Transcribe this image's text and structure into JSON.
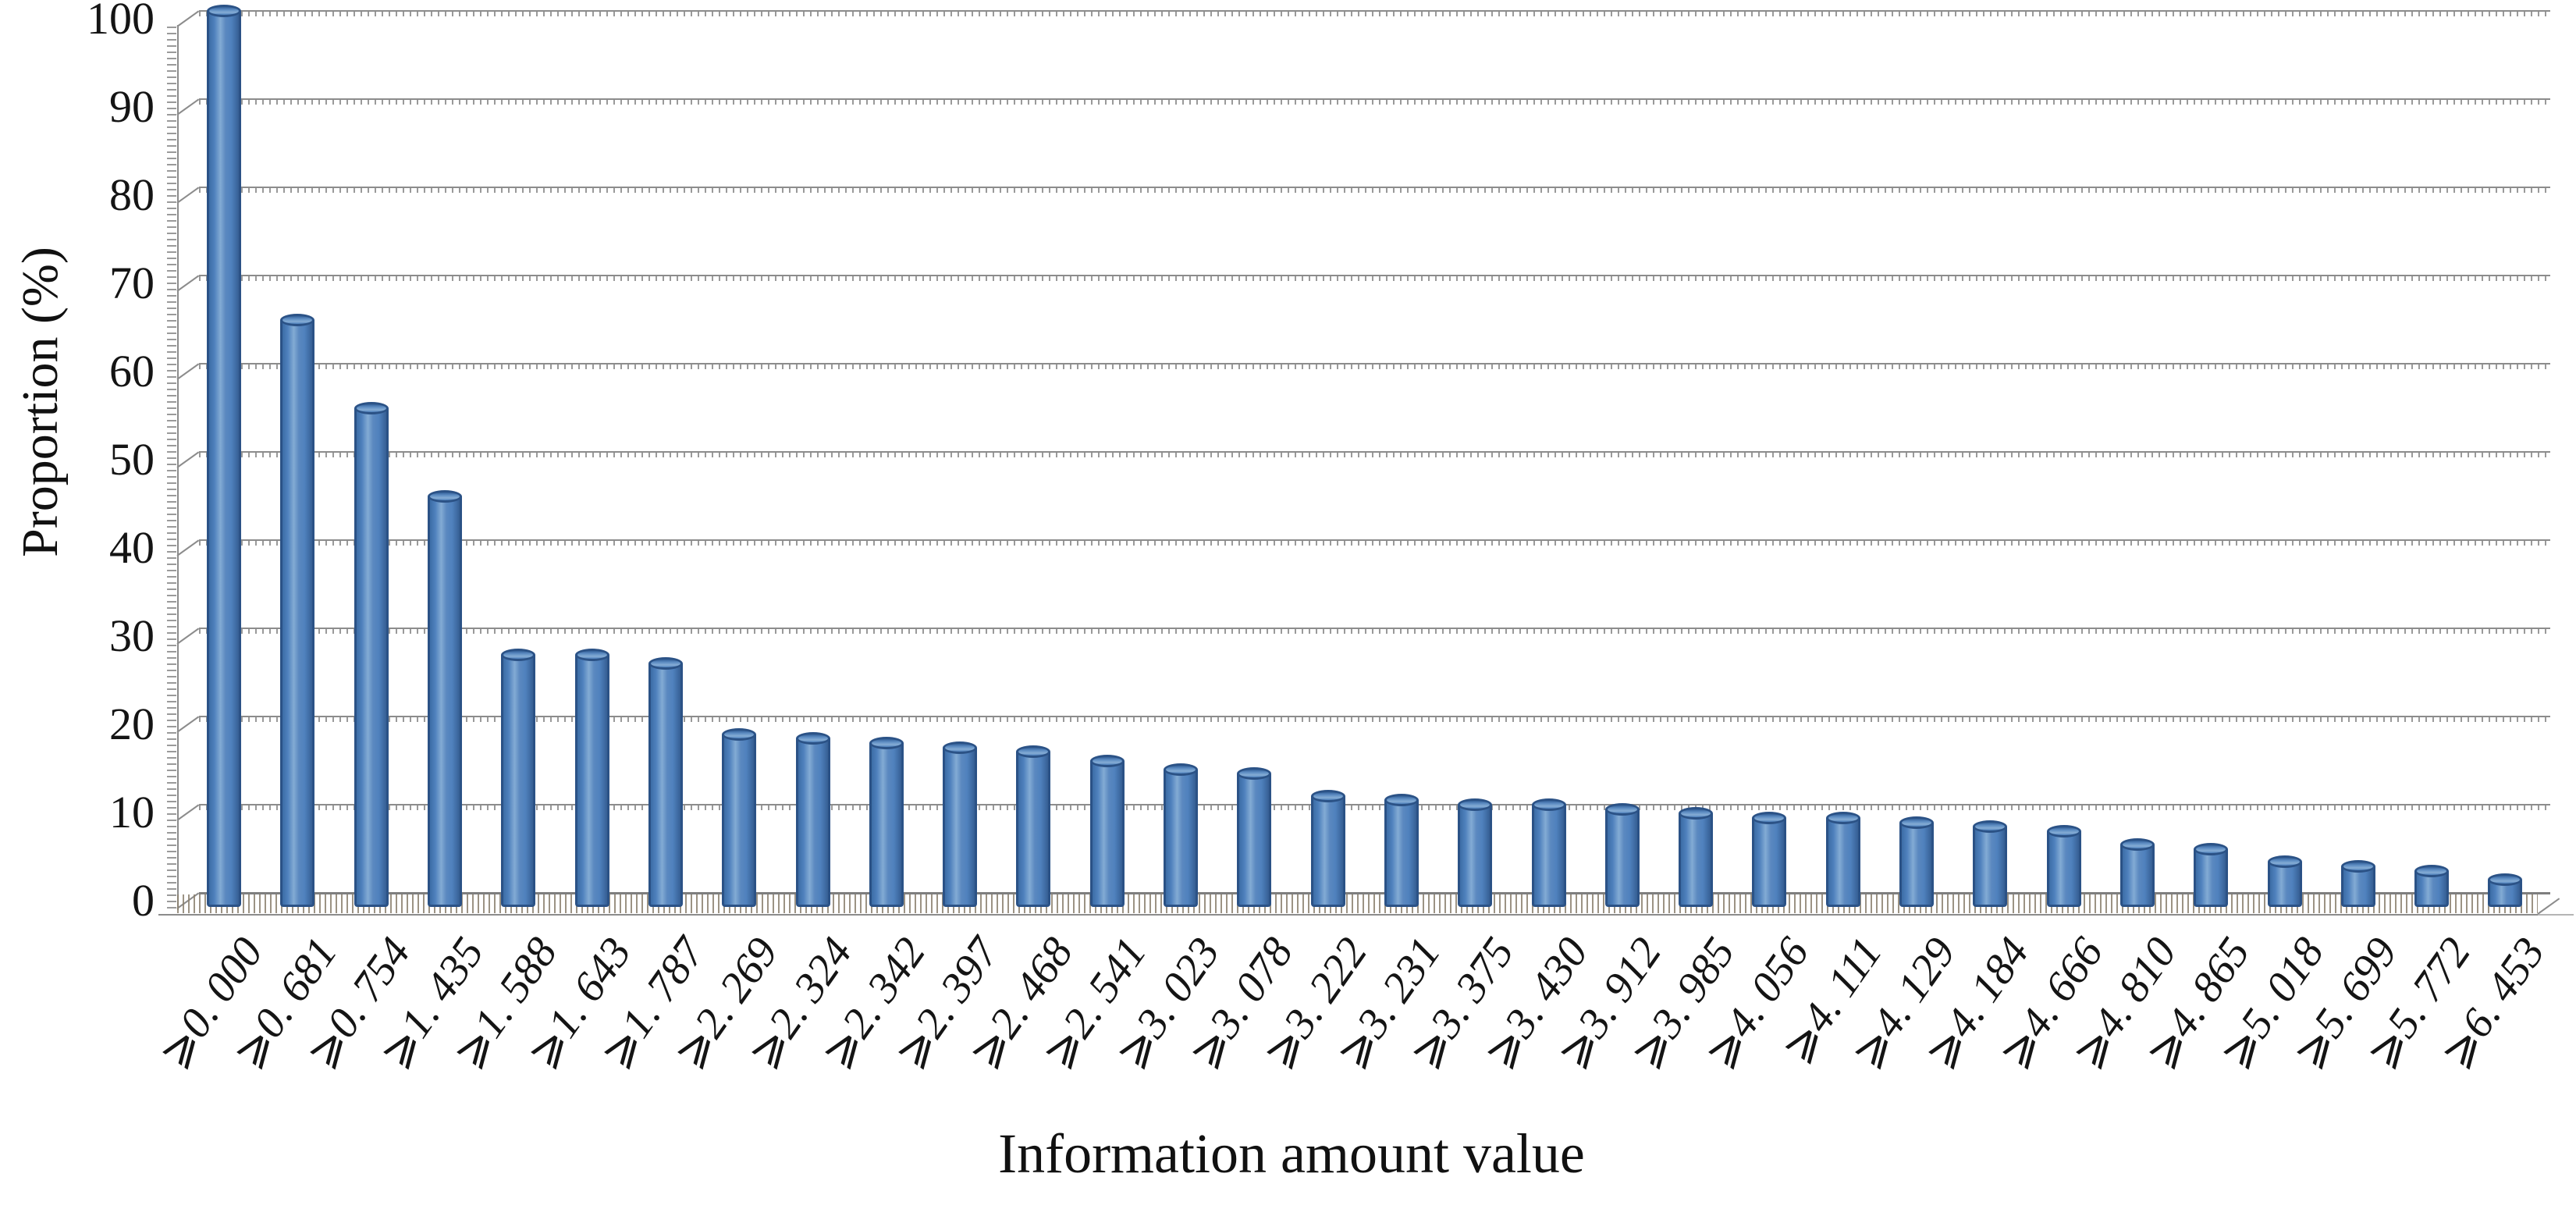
{
  "chart_data": {
    "type": "bar",
    "title": "",
    "xlabel": "Information amount value",
    "ylabel": "Proportion (%)",
    "ylim": [
      0,
      100
    ],
    "yticks": [
      0,
      10,
      20,
      30,
      40,
      50,
      60,
      70,
      80,
      90,
      100
    ],
    "grid": true,
    "legend_position": "none",
    "categories": [
      "⩾0. 000",
      "⩾0. 681",
      "⩾0. 754",
      "⩾1. 435",
      "⩾1. 588",
      "⩾1. 643",
      "⩾1. 787",
      "⩾2. 269",
      "⩾2. 324",
      "⩾2. 342",
      "⩾2. 397",
      "⩾2. 468",
      "⩾2. 541",
      "⩾3. 023",
      "⩾3. 078",
      "⩾3. 222",
      "⩾3. 231",
      "⩾3. 375",
      "⩾3. 430",
      "⩾3. 912",
      "⩾3. 985",
      "⩾4. 056",
      "⩾4. 111",
      "⩾4. 129",
      "⩾4. 184",
      "⩾4. 666",
      "⩾4. 810",
      "⩾4. 865",
      "⩾5. 018",
      "⩾5. 699",
      "⩾5. 772",
      "⩾6. 453"
    ],
    "values": [
      100,
      65,
      55,
      45,
      27,
      27,
      26,
      18,
      17.5,
      17,
      16.5,
      16,
      15,
      14,
      13.5,
      11,
      10.5,
      10,
      10,
      9.5,
      9,
      8.5,
      8.5,
      8,
      7.5,
      7,
      5.5,
      5,
      3.5,
      3,
      2.5,
      1.5
    ],
    "bar_color": "#4f81bd",
    "bar_border_color": "#2b5286",
    "gridline_color": "#8c8c8c",
    "style": "3d-column-front-view"
  }
}
